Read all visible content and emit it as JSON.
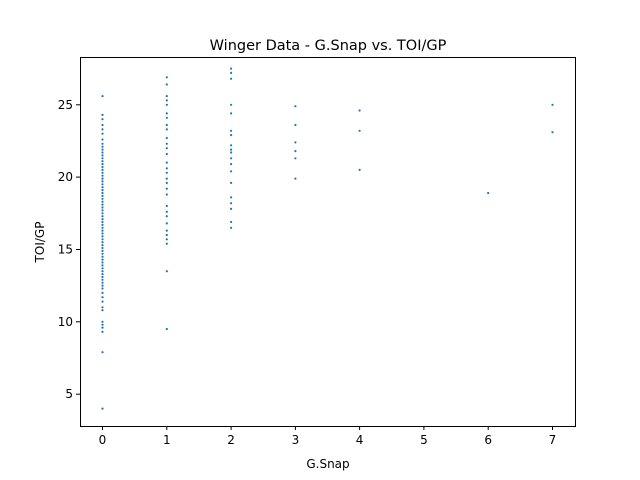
{
  "chart_data": {
    "type": "scatter",
    "title": "Winger Data - G.Snap vs. TOI/GP",
    "xlabel": "G.Snap",
    "ylabel": "TOI/GP",
    "xlim": [
      -0.35,
      7.35
    ],
    "ylim": [
      2.8,
      28.3
    ],
    "xticks": [
      0,
      1,
      2,
      3,
      4,
      5,
      6,
      7
    ],
    "yticks": [
      5,
      10,
      15,
      20,
      25
    ],
    "grid": false,
    "marker_color": "#1f77b4",
    "series": [
      {
        "points": [
          [
            0,
            4.0
          ],
          [
            0,
            7.9
          ],
          [
            0,
            9.3
          ],
          [
            0,
            9.6
          ],
          [
            0,
            9.8
          ],
          [
            0,
            10.0
          ],
          [
            0,
            10.8
          ],
          [
            0,
            11.0
          ],
          [
            0,
            11.4
          ],
          [
            0,
            11.7
          ],
          [
            0,
            12.0
          ],
          [
            0,
            12.3
          ],
          [
            0,
            12.5
          ],
          [
            0,
            12.7
          ],
          [
            0,
            12.9
          ],
          [
            0,
            13.1
          ],
          [
            0,
            13.3
          ],
          [
            0,
            13.5
          ],
          [
            0,
            13.7
          ],
          [
            0,
            13.9
          ],
          [
            0,
            14.1
          ],
          [
            0,
            14.3
          ],
          [
            0,
            14.5
          ],
          [
            0,
            14.7
          ],
          [
            0,
            14.9
          ],
          [
            0,
            15.1
          ],
          [
            0,
            15.3
          ],
          [
            0,
            15.5
          ],
          [
            0,
            15.7
          ],
          [
            0,
            15.9
          ],
          [
            0,
            16.1
          ],
          [
            0,
            16.3
          ],
          [
            0,
            16.5
          ],
          [
            0,
            16.7
          ],
          [
            0,
            16.9
          ],
          [
            0,
            17.1
          ],
          [
            0,
            17.3
          ],
          [
            0,
            17.5
          ],
          [
            0,
            17.7
          ],
          [
            0,
            17.9
          ],
          [
            0,
            18.1
          ],
          [
            0,
            18.3
          ],
          [
            0,
            18.5
          ],
          [
            0,
            18.7
          ],
          [
            0,
            18.9
          ],
          [
            0,
            19.1
          ],
          [
            0,
            19.3
          ],
          [
            0,
            19.5
          ],
          [
            0,
            19.7
          ],
          [
            0,
            19.9
          ],
          [
            0,
            20.1
          ],
          [
            0,
            20.3
          ],
          [
            0,
            20.5
          ],
          [
            0,
            20.7
          ],
          [
            0,
            20.9
          ],
          [
            0,
            21.1
          ],
          [
            0,
            21.3
          ],
          [
            0,
            21.5
          ],
          [
            0,
            21.7
          ],
          [
            0,
            21.9
          ],
          [
            0,
            22.1
          ],
          [
            0,
            22.3
          ],
          [
            0,
            22.6
          ],
          [
            0,
            23.0
          ],
          [
            0,
            23.3
          ],
          [
            0,
            23.6
          ],
          [
            0,
            24.0
          ],
          [
            0,
            24.3
          ],
          [
            0,
            25.6
          ],
          [
            1,
            9.5
          ],
          [
            1,
            13.5
          ],
          [
            1,
            15.4
          ],
          [
            1,
            15.7
          ],
          [
            1,
            16.0
          ],
          [
            1,
            16.3
          ],
          [
            1,
            16.8
          ],
          [
            1,
            17.3
          ],
          [
            1,
            17.6
          ],
          [
            1,
            18.0
          ],
          [
            1,
            18.8
          ],
          [
            1,
            19.2
          ],
          [
            1,
            19.6
          ],
          [
            1,
            19.9
          ],
          [
            1,
            20.3
          ],
          [
            1,
            20.6
          ],
          [
            1,
            21.0
          ],
          [
            1,
            21.6
          ],
          [
            1,
            22.0
          ],
          [
            1,
            22.3
          ],
          [
            1,
            22.7
          ],
          [
            1,
            23.3
          ],
          [
            1,
            23.6
          ],
          [
            1,
            24.1
          ],
          [
            1,
            24.4
          ],
          [
            1,
            25.0
          ],
          [
            1,
            25.3
          ],
          [
            1,
            25.6
          ],
          [
            1,
            26.4
          ],
          [
            1,
            26.9
          ],
          [
            2,
            16.5
          ],
          [
            2,
            16.9
          ],
          [
            2,
            17.8
          ],
          [
            2,
            18.2
          ],
          [
            2,
            18.6
          ],
          [
            2,
            19.6
          ],
          [
            2,
            20.4
          ],
          [
            2,
            20.9
          ],
          [
            2,
            21.3
          ],
          [
            2,
            21.7
          ],
          [
            2,
            21.9
          ],
          [
            2,
            22.2
          ],
          [
            2,
            22.9
          ],
          [
            2,
            23.2
          ],
          [
            2,
            24.4
          ],
          [
            2,
            25.0
          ],
          [
            2,
            26.8
          ],
          [
            2,
            27.2
          ],
          [
            2,
            27.5
          ],
          [
            3,
            19.9
          ],
          [
            3,
            21.3
          ],
          [
            3,
            21.8
          ],
          [
            3,
            22.4
          ],
          [
            3,
            23.6
          ],
          [
            3,
            24.9
          ],
          [
            4,
            20.5
          ],
          [
            4,
            23.2
          ],
          [
            4,
            24.6
          ],
          [
            6,
            18.9
          ],
          [
            7,
            23.1
          ],
          [
            7,
            25.0
          ]
        ]
      }
    ]
  }
}
